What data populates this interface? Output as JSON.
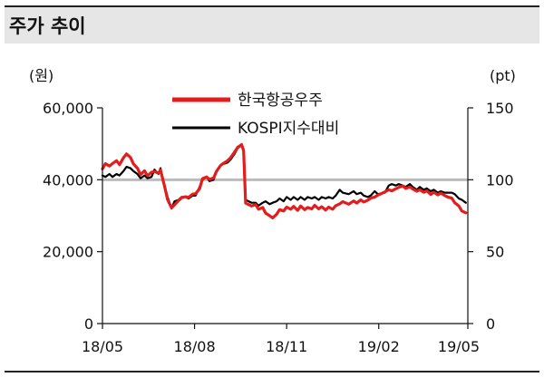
{
  "header": {
    "title": "주가 추이"
  },
  "chart_data": {
    "type": "line",
    "title": "주가 추이",
    "y_left": {
      "label": "(원)",
      "ylim": [
        0,
        60000
      ],
      "ticks": [
        0,
        20000,
        40000,
        60000
      ],
      "tick_labels": [
        "0",
        "20,000",
        "40,000",
        "60,000"
      ]
    },
    "y_right": {
      "label": "(pt)",
      "ylim": [
        0,
        150
      ],
      "ticks": [
        0,
        50,
        100,
        150
      ],
      "tick_labels": [
        "0",
        "50",
        "100",
        "150"
      ]
    },
    "x": {
      "range": [
        "2018-05-01",
        "2019-05-01"
      ],
      "ticks": [
        "2018-05-01",
        "2018-08-01",
        "2018-11-01",
        "2019-02-01",
        "2019-05-01"
      ],
      "tick_labels": [
        "18/05",
        "18/08",
        "18/11",
        "19/02",
        "19/05"
      ]
    },
    "reference_line": {
      "axis": "right",
      "value": 100,
      "color": "#bbbbbb"
    },
    "legend": {
      "placement": "top-center"
    },
    "series": [
      {
        "name": "한국항공우주",
        "axis": "left",
        "color": "#e31c1c",
        "points": [
          [
            "2018-05-01",
            43000
          ],
          [
            "2018-05-04",
            44500
          ],
          [
            "2018-05-08",
            43800
          ],
          [
            "2018-05-11",
            44500
          ],
          [
            "2018-05-15",
            45300
          ],
          [
            "2018-05-18",
            44200
          ],
          [
            "2018-05-22",
            46100
          ],
          [
            "2018-05-25",
            47200
          ],
          [
            "2018-05-29",
            46200
          ],
          [
            "2018-06-01",
            44400
          ],
          [
            "2018-06-05",
            43200
          ],
          [
            "2018-06-08",
            41400
          ],
          [
            "2018-06-12",
            42500
          ],
          [
            "2018-06-15",
            41100
          ],
          [
            "2018-06-19",
            42100
          ],
          [
            "2018-06-22",
            42300
          ],
          [
            "2018-06-26",
            41800
          ],
          [
            "2018-06-28",
            42700
          ],
          [
            "2018-07-02",
            38200
          ],
          [
            "2018-07-05",
            34500
          ],
          [
            "2018-07-09",
            32200
          ],
          [
            "2018-07-12",
            33000
          ],
          [
            "2018-07-16",
            34200
          ],
          [
            "2018-07-19",
            35000
          ],
          [
            "2018-07-23",
            35300
          ],
          [
            "2018-07-26",
            35100
          ],
          [
            "2018-07-30",
            36000
          ],
          [
            "2018-08-02",
            36100
          ],
          [
            "2018-08-06",
            37500
          ],
          [
            "2018-08-09",
            40300
          ],
          [
            "2018-08-13",
            40800
          ],
          [
            "2018-08-16",
            40100
          ],
          [
            "2018-08-20",
            40500
          ],
          [
            "2018-08-23",
            42400
          ],
          [
            "2018-08-27",
            44000
          ],
          [
            "2018-08-30",
            44600
          ],
          [
            "2018-09-03",
            45300
          ],
          [
            "2018-09-06",
            46100
          ],
          [
            "2018-09-10",
            47700
          ],
          [
            "2018-09-13",
            49000
          ],
          [
            "2018-09-17",
            49800
          ],
          [
            "2018-09-19",
            48100
          ],
          [
            "2018-09-21",
            33500
          ],
          [
            "2018-09-27",
            32700
          ],
          [
            "2018-10-01",
            33100
          ],
          [
            "2018-10-04",
            31800
          ],
          [
            "2018-10-08",
            32300
          ],
          [
            "2018-10-11",
            30700
          ],
          [
            "2018-10-15",
            30000
          ],
          [
            "2018-10-18",
            29400
          ],
          [
            "2018-10-22",
            30400
          ],
          [
            "2018-10-25",
            31700
          ],
          [
            "2018-10-29",
            31300
          ],
          [
            "2018-11-01",
            32400
          ],
          [
            "2018-11-05",
            31800
          ],
          [
            "2018-11-08",
            32600
          ],
          [
            "2018-11-12",
            31500
          ],
          [
            "2018-11-15",
            32700
          ],
          [
            "2018-11-19",
            31700
          ],
          [
            "2018-11-22",
            32300
          ],
          [
            "2018-11-26",
            31900
          ],
          [
            "2018-11-29",
            32900
          ],
          [
            "2018-12-03",
            31900
          ],
          [
            "2018-12-06",
            32500
          ],
          [
            "2018-12-10",
            31600
          ],
          [
            "2018-12-13",
            32400
          ],
          [
            "2018-12-17",
            31800
          ],
          [
            "2018-12-20",
            32800
          ],
          [
            "2018-12-24",
            33300
          ],
          [
            "2018-12-27",
            33900
          ],
          [
            "2019-01-02",
            33200
          ],
          [
            "2019-01-07",
            34100
          ],
          [
            "2019-01-10",
            33500
          ],
          [
            "2019-01-14",
            34400
          ],
          [
            "2019-01-17",
            33800
          ],
          [
            "2019-01-21",
            34300
          ],
          [
            "2019-01-24",
            34900
          ],
          [
            "2019-01-28",
            35200
          ],
          [
            "2019-01-31",
            35700
          ],
          [
            "2019-02-07",
            36600
          ],
          [
            "2019-02-11",
            37200
          ],
          [
            "2019-02-14",
            36900
          ],
          [
            "2019-02-18",
            37500
          ],
          [
            "2019-02-21",
            37900
          ],
          [
            "2019-02-25",
            38300
          ],
          [
            "2019-02-28",
            37600
          ],
          [
            "2019-03-04",
            38000
          ],
          [
            "2019-03-07",
            37400
          ],
          [
            "2019-03-11",
            36800
          ],
          [
            "2019-03-14",
            37200
          ],
          [
            "2019-03-18",
            36500
          ],
          [
            "2019-03-21",
            36900
          ],
          [
            "2019-03-25",
            35900
          ],
          [
            "2019-03-28",
            36500
          ],
          [
            "2019-04-01",
            35800
          ],
          [
            "2019-04-04",
            36300
          ],
          [
            "2019-04-08",
            35600
          ],
          [
            "2019-04-11",
            35200
          ],
          [
            "2019-04-15",
            34900
          ],
          [
            "2019-04-18",
            33600
          ],
          [
            "2019-04-22",
            32700
          ],
          [
            "2019-04-25",
            31300
          ],
          [
            "2019-04-29",
            30800
          ]
        ]
      },
      {
        "name": "KOSPI지수대비",
        "axis": "right",
        "color": "#000000",
        "points": [
          [
            "2018-05-01",
            103
          ],
          [
            "2018-05-04",
            102
          ],
          [
            "2018-05-08",
            104
          ],
          [
            "2018-05-11",
            102
          ],
          [
            "2018-05-15",
            104
          ],
          [
            "2018-05-18",
            103
          ],
          [
            "2018-05-22",
            106
          ],
          [
            "2018-05-25",
            109
          ],
          [
            "2018-05-29",
            108
          ],
          [
            "2018-06-01",
            106
          ],
          [
            "2018-06-05",
            104
          ],
          [
            "2018-06-08",
            101
          ],
          [
            "2018-06-12",
            103
          ],
          [
            "2018-06-15",
            101
          ],
          [
            "2018-06-19",
            102
          ],
          [
            "2018-06-22",
            107
          ],
          [
            "2018-06-26",
            104
          ],
          [
            "2018-06-28",
            108
          ],
          [
            "2018-07-02",
            96
          ],
          [
            "2018-07-05",
            88
          ],
          [
            "2018-07-09",
            80
          ],
          [
            "2018-07-12",
            85
          ],
          [
            "2018-07-16",
            86
          ],
          [
            "2018-07-19",
            88
          ],
          [
            "2018-07-23",
            88
          ],
          [
            "2018-07-26",
            87
          ],
          [
            "2018-07-30",
            89
          ],
          [
            "2018-08-02",
            89
          ],
          [
            "2018-08-06",
            95
          ],
          [
            "2018-08-09",
            100
          ],
          [
            "2018-08-13",
            102
          ],
          [
            "2018-08-16",
            99
          ],
          [
            "2018-08-20",
            100
          ],
          [
            "2018-08-23",
            106
          ],
          [
            "2018-08-27",
            110
          ],
          [
            "2018-08-30",
            111
          ],
          [
            "2018-09-03",
            112
          ],
          [
            "2018-09-06",
            114
          ],
          [
            "2018-09-10",
            118
          ],
          [
            "2018-09-13",
            122
          ],
          [
            "2018-09-17",
            124
          ],
          [
            "2018-09-19",
            121
          ],
          [
            "2018-09-21",
            86
          ],
          [
            "2018-09-27",
            84
          ],
          [
            "2018-10-01",
            84
          ],
          [
            "2018-10-04",
            82
          ],
          [
            "2018-10-08",
            84
          ],
          [
            "2018-10-11",
            85
          ],
          [
            "2018-10-15",
            83
          ],
          [
            "2018-10-18",
            84
          ],
          [
            "2018-10-22",
            85
          ],
          [
            "2018-10-25",
            87
          ],
          [
            "2018-10-29",
            85
          ],
          [
            "2018-11-01",
            88
          ],
          [
            "2018-11-05",
            86
          ],
          [
            "2018-11-08",
            88
          ],
          [
            "2018-11-12",
            86
          ],
          [
            "2018-11-15",
            88
          ],
          [
            "2018-11-19",
            86
          ],
          [
            "2018-11-22",
            88
          ],
          [
            "2018-11-26",
            87
          ],
          [
            "2018-11-29",
            88
          ],
          [
            "2018-12-03",
            86
          ],
          [
            "2018-12-06",
            88
          ],
          [
            "2018-12-10",
            87
          ],
          [
            "2018-12-13",
            88
          ],
          [
            "2018-12-17",
            87
          ],
          [
            "2018-12-20",
            89
          ],
          [
            "2018-12-24",
            93
          ],
          [
            "2018-12-27",
            91
          ],
          [
            "2019-01-02",
            90
          ],
          [
            "2019-01-07",
            92
          ],
          [
            "2019-01-10",
            90
          ],
          [
            "2019-01-14",
            91
          ],
          [
            "2019-01-17",
            89
          ],
          [
            "2019-01-21",
            88
          ],
          [
            "2019-01-24",
            89
          ],
          [
            "2019-01-28",
            92
          ],
          [
            "2019-01-31",
            90
          ],
          [
            "2019-02-07",
            91
          ],
          [
            "2019-02-11",
            96
          ],
          [
            "2019-02-14",
            97
          ],
          [
            "2019-02-18",
            96
          ],
          [
            "2019-02-21",
            97
          ],
          [
            "2019-02-25",
            96
          ],
          [
            "2019-02-28",
            95
          ],
          [
            "2019-03-04",
            97
          ],
          [
            "2019-03-07",
            95
          ],
          [
            "2019-03-11",
            93
          ],
          [
            "2019-03-14",
            95
          ],
          [
            "2019-03-18",
            93
          ],
          [
            "2019-03-21",
            94
          ],
          [
            "2019-03-25",
            92
          ],
          [
            "2019-03-28",
            93
          ],
          [
            "2019-04-01",
            91
          ],
          [
            "2019-04-04",
            92
          ],
          [
            "2019-04-08",
            91
          ],
          [
            "2019-04-11",
            91
          ],
          [
            "2019-04-15",
            91
          ],
          [
            "2019-04-18",
            90
          ],
          [
            "2019-04-22",
            87
          ],
          [
            "2019-04-25",
            86
          ],
          [
            "2019-04-29",
            84
          ]
        ]
      }
    ]
  }
}
